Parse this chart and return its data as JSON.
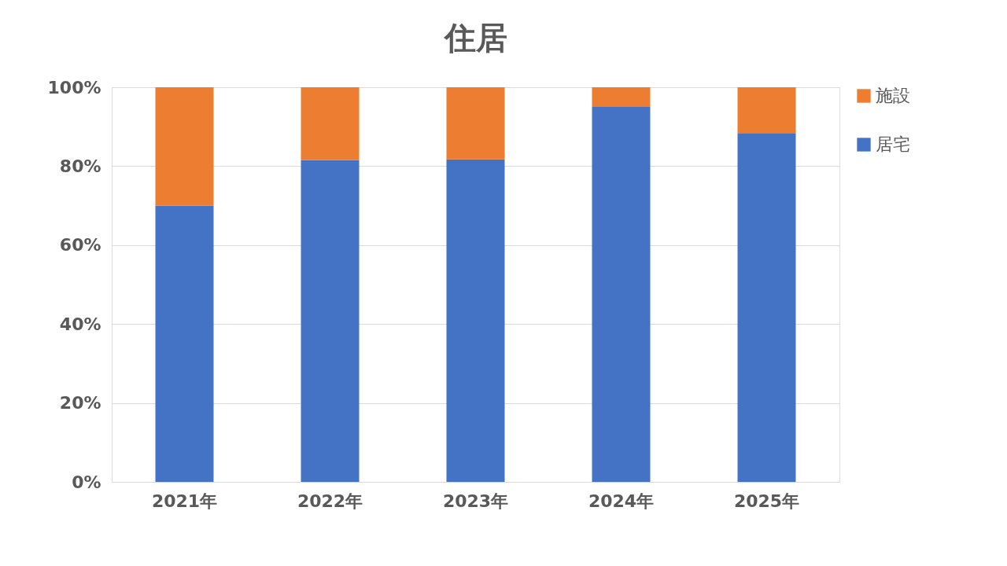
{
  "chart_data": {
    "type": "bar",
    "title": "住居",
    "stacked": true,
    "categories": [
      "2021年",
      "2022年",
      "2023年",
      "2024年",
      "2025年"
    ],
    "series": [
      {
        "name": "居宅",
        "color": "#4472c4",
        "values": [
          70,
          81.5,
          81.7,
          95,
          88.4
        ]
      },
      {
        "name": "施設",
        "color": "#ed7d31",
        "values": [
          30,
          18.5,
          18.3,
          5,
          11.6
        ]
      }
    ],
    "ylim": [
      0,
      100
    ],
    "yticks": [
      {
        "value": 0,
        "label": "0%"
      },
      {
        "value": 20,
        "label": "20%"
      },
      {
        "value": 40,
        "label": "40%"
      },
      {
        "value": 60,
        "label": "60%"
      },
      {
        "value": 80,
        "label": "80%"
      },
      {
        "value": 100,
        "label": "100%"
      }
    ],
    "grid": "y",
    "legend": "right"
  }
}
